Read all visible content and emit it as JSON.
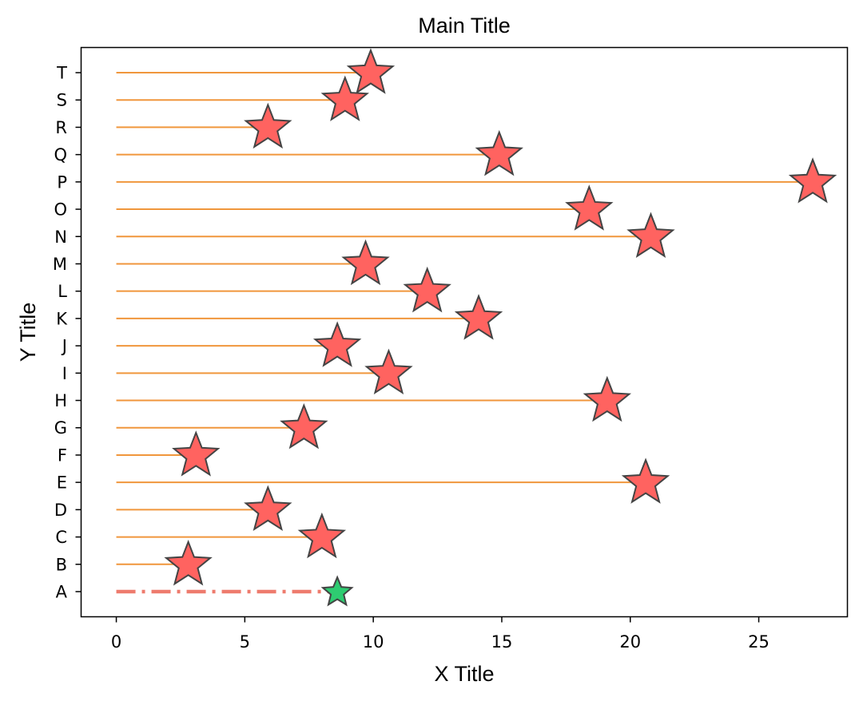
{
  "chart_data": {
    "type": "lollipop",
    "title": "Main Title",
    "xlabel": "X Title",
    "ylabel": "Y Title",
    "categories": [
      "A",
      "B",
      "C",
      "D",
      "E",
      "F",
      "G",
      "H",
      "I",
      "J",
      "K",
      "L",
      "M",
      "N",
      "O",
      "P",
      "Q",
      "R",
      "S",
      "T"
    ],
    "values": [
      8.6,
      2.8,
      8.0,
      5.9,
      20.6,
      3.1,
      7.3,
      19.1,
      10.6,
      8.6,
      14.1,
      12.1,
      9.7,
      20.8,
      18.4,
      27.1,
      14.9,
      5.9,
      8.9,
      9.9
    ],
    "highlight_category": "A",
    "xticks": [
      0,
      5,
      10,
      15,
      20,
      25
    ],
    "xlim": [
      -1.37,
      28.45
    ],
    "grid": false,
    "colors": {
      "stem": "#f0963c",
      "marker": "#ff6360",
      "highlight_marker": "#2ecc71",
      "highlight_stem": "#ee7b6d",
      "marker_edge": "#444444"
    }
  }
}
